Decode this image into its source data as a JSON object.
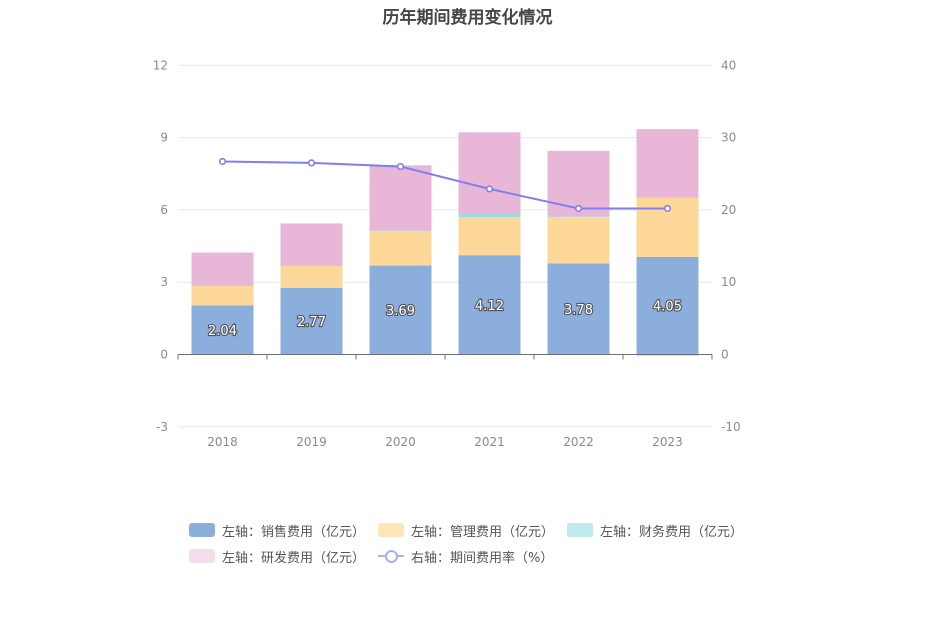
{
  "chart_data": {
    "type": "bar",
    "title": "历年期间费用变化情况",
    "categories": [
      "2018",
      "2019",
      "2020",
      "2021",
      "2022",
      "2023"
    ],
    "y_left": {
      "ticks": [
        "12",
        "9",
        "6",
        "3",
        "0",
        "-3"
      ],
      "ylim": [
        -3,
        12
      ]
    },
    "y_right": {
      "ticks": [
        "40",
        "30",
        "20",
        "10",
        "0",
        "-10"
      ],
      "ylim": [
        -10,
        40
      ]
    },
    "series": [
      {
        "name": "左轴：销售费用（亿元）",
        "type": "bar",
        "axis": "left",
        "color": "#8caedd",
        "values": [
          2.04,
          2.77,
          3.69,
          4.12,
          3.78,
          4.05
        ],
        "labels": [
          "2.04",
          "2.77",
          "3.69",
          "4.12",
          "3.78",
          "4.05"
        ]
      },
      {
        "name": "左轴：管理费用（亿元）",
        "type": "bar",
        "axis": "left",
        "color": "#fed899",
        "values": [
          0.8,
          0.9,
          1.43,
          1.58,
          1.92,
          2.45
        ]
      },
      {
        "name": "左轴：财务费用（亿元）",
        "type": "bar",
        "axis": "left",
        "color": "#9edce3",
        "values": [
          0.02,
          0.02,
          0.02,
          0.15,
          0.03,
          -0.05
        ]
      },
      {
        "name": "左轴：研发费用（亿元）",
        "type": "bar",
        "axis": "left",
        "color": "#e8b7d8",
        "values": [
          1.37,
          1.75,
          2.71,
          3.37,
          2.72,
          2.85
        ]
      },
      {
        "name": "右轴：期间费用率（%）",
        "type": "line",
        "axis": "right",
        "color": "#7f7ff0",
        "values": [
          26.7,
          26.5,
          26.0,
          22.9,
          20.2,
          20.2
        ]
      }
    ],
    "grid": true,
    "legend_position": "bottom"
  }
}
